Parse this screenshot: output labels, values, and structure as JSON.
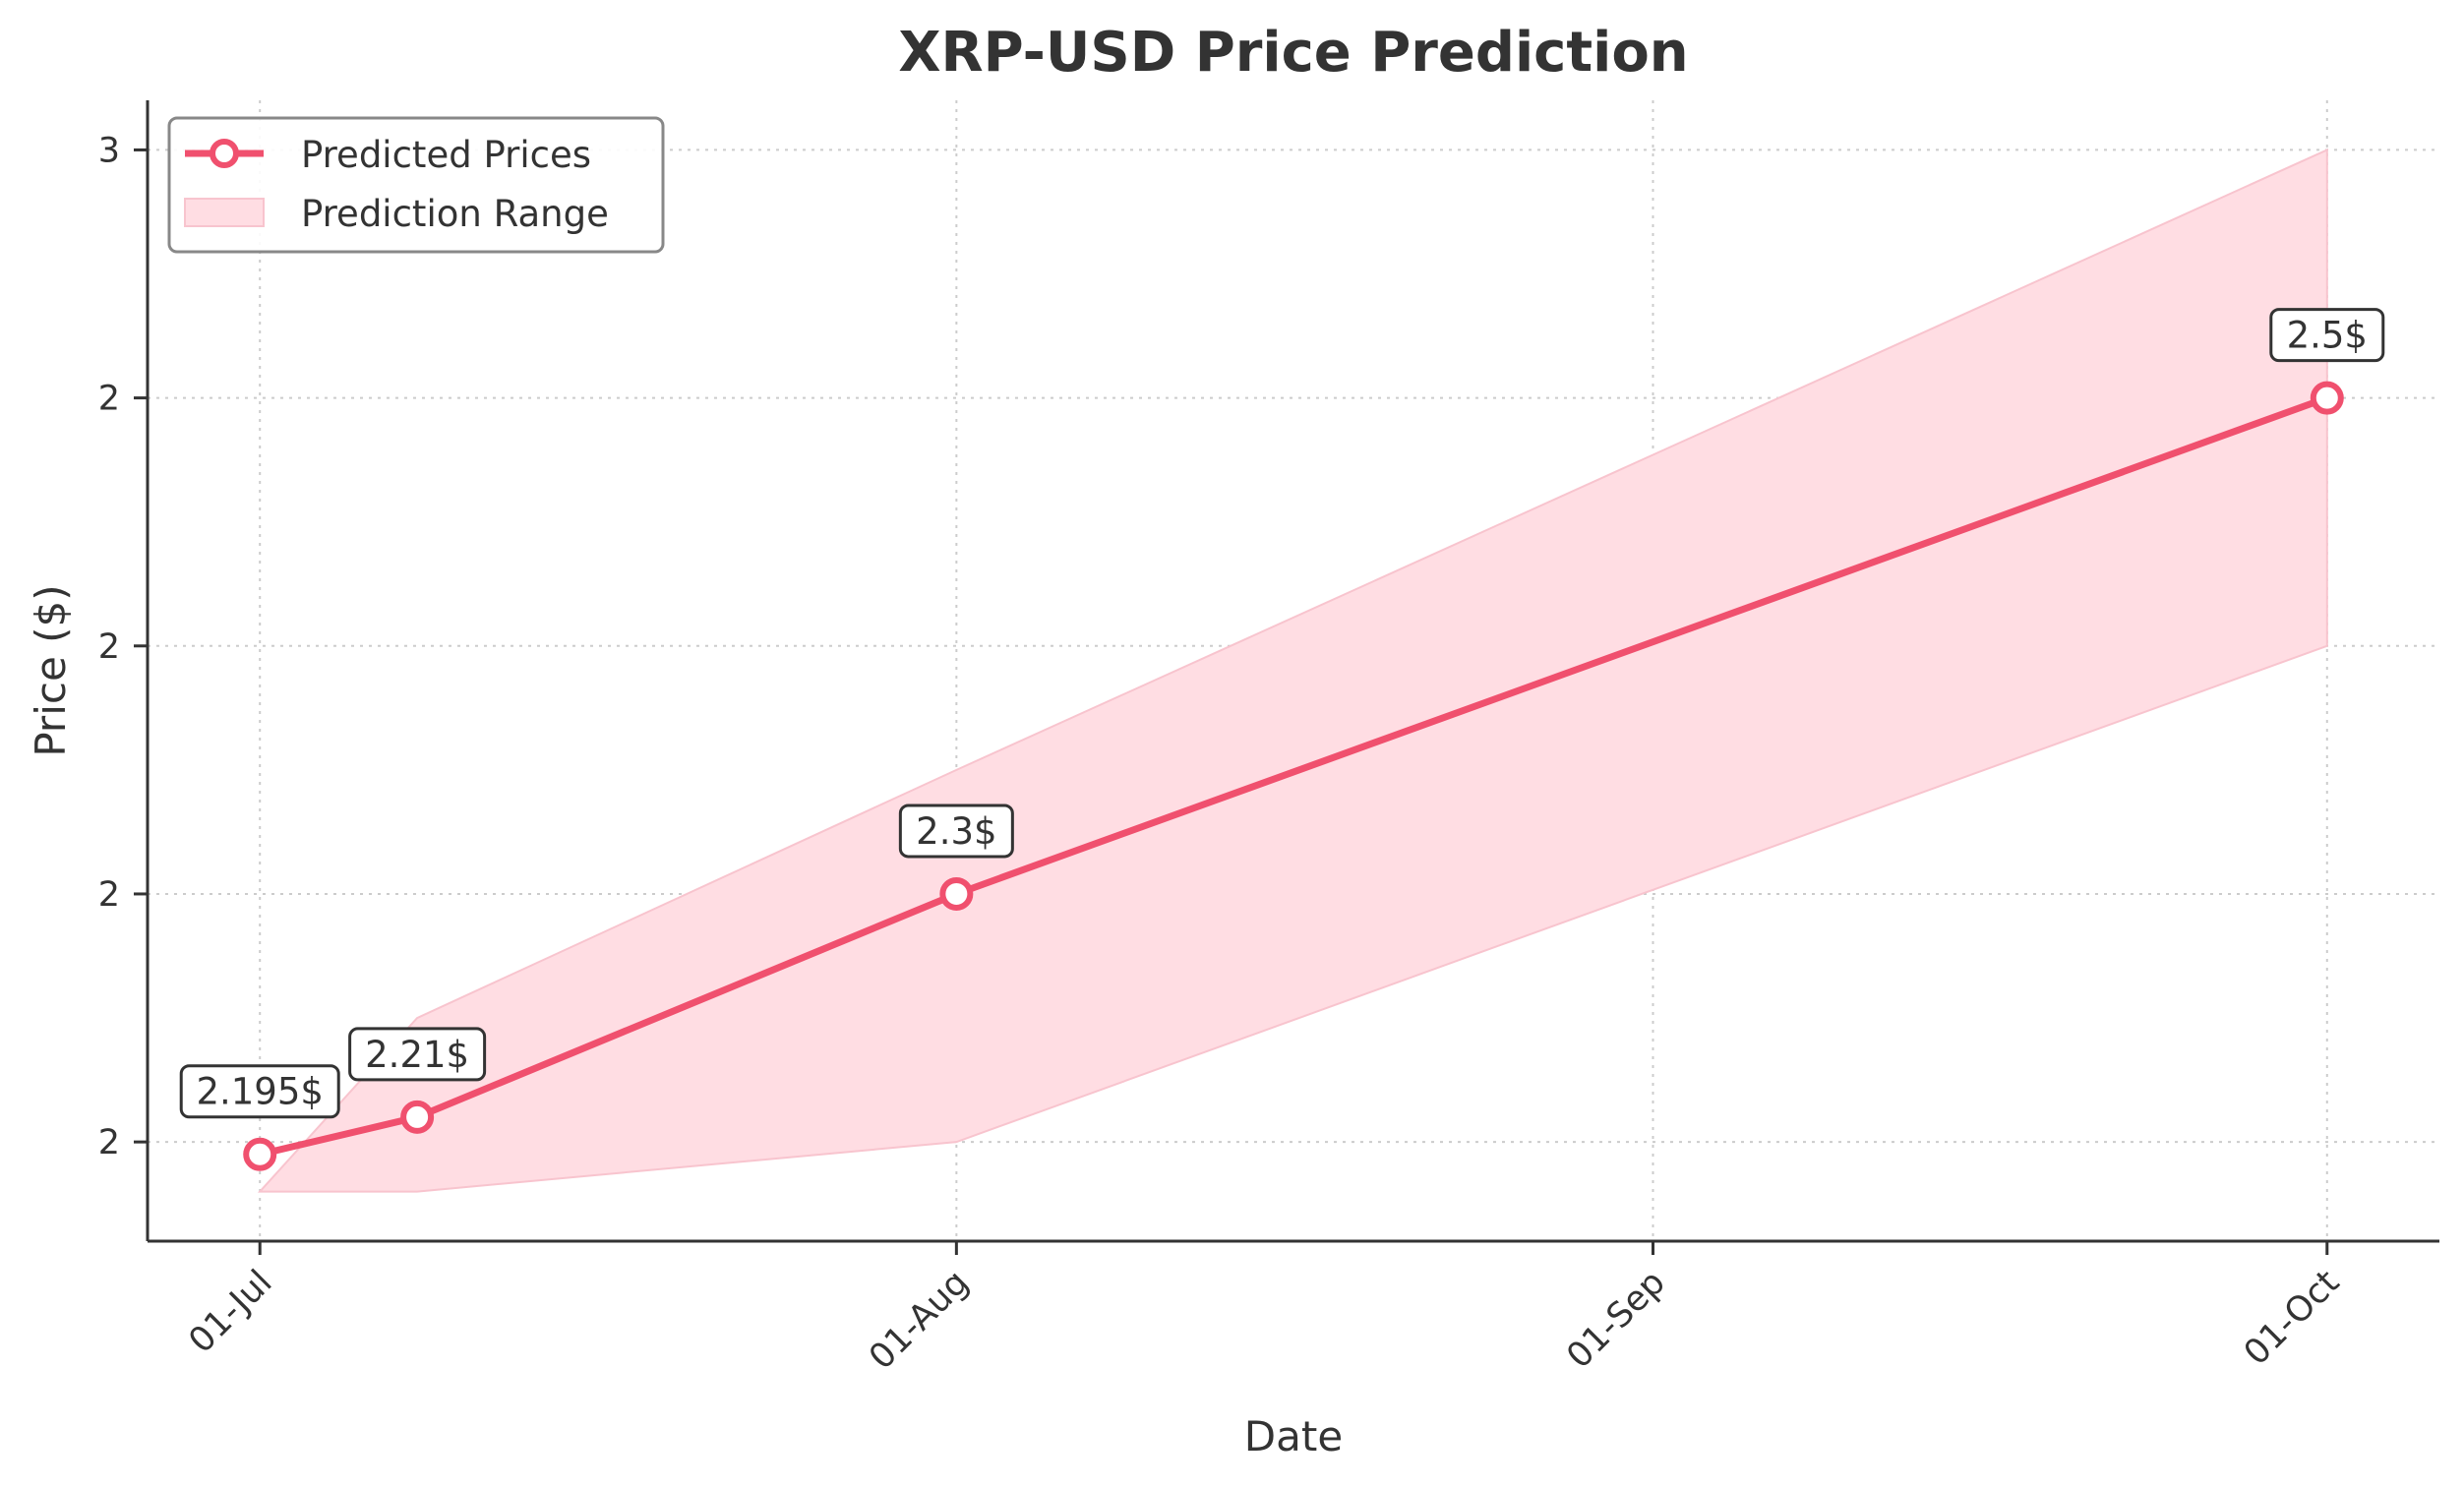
{
  "chart_data": {
    "type": "line",
    "title": "XRP-USD Price Prediction",
    "xlabel": "Date",
    "ylabel": "Price ($)",
    "x_ticks": [
      "01-Jul",
      "01-Aug",
      "01-Sep",
      "01-Oct"
    ],
    "y_ticks": [
      "2",
      "2",
      "2",
      "2",
      "3"
    ],
    "grid": true,
    "legend_position": "top-left",
    "x": [
      "2025-07-01",
      "2025-07-08",
      "2025-08-01",
      "2025-10-01"
    ],
    "series": [
      {
        "name": "Predicted Prices",
        "values": [
          2.195,
          2.21,
          2.3,
          2.5
        ],
        "data_labels": [
          "2.195$",
          "2.21$",
          "2.3$",
          "2.5$"
        ],
        "color": "#f0506e"
      }
    ],
    "range": {
      "name": "Prediction Range",
      "lower": [
        2.18,
        2.18,
        2.2,
        2.4
      ],
      "upper": [
        2.18,
        2.25,
        2.35,
        2.6
      ],
      "color": "#ffdde3"
    },
    "xlim": [
      "2025-06-26",
      "2025-10-06"
    ],
    "ylim": [
      2.16,
      2.62
    ]
  }
}
